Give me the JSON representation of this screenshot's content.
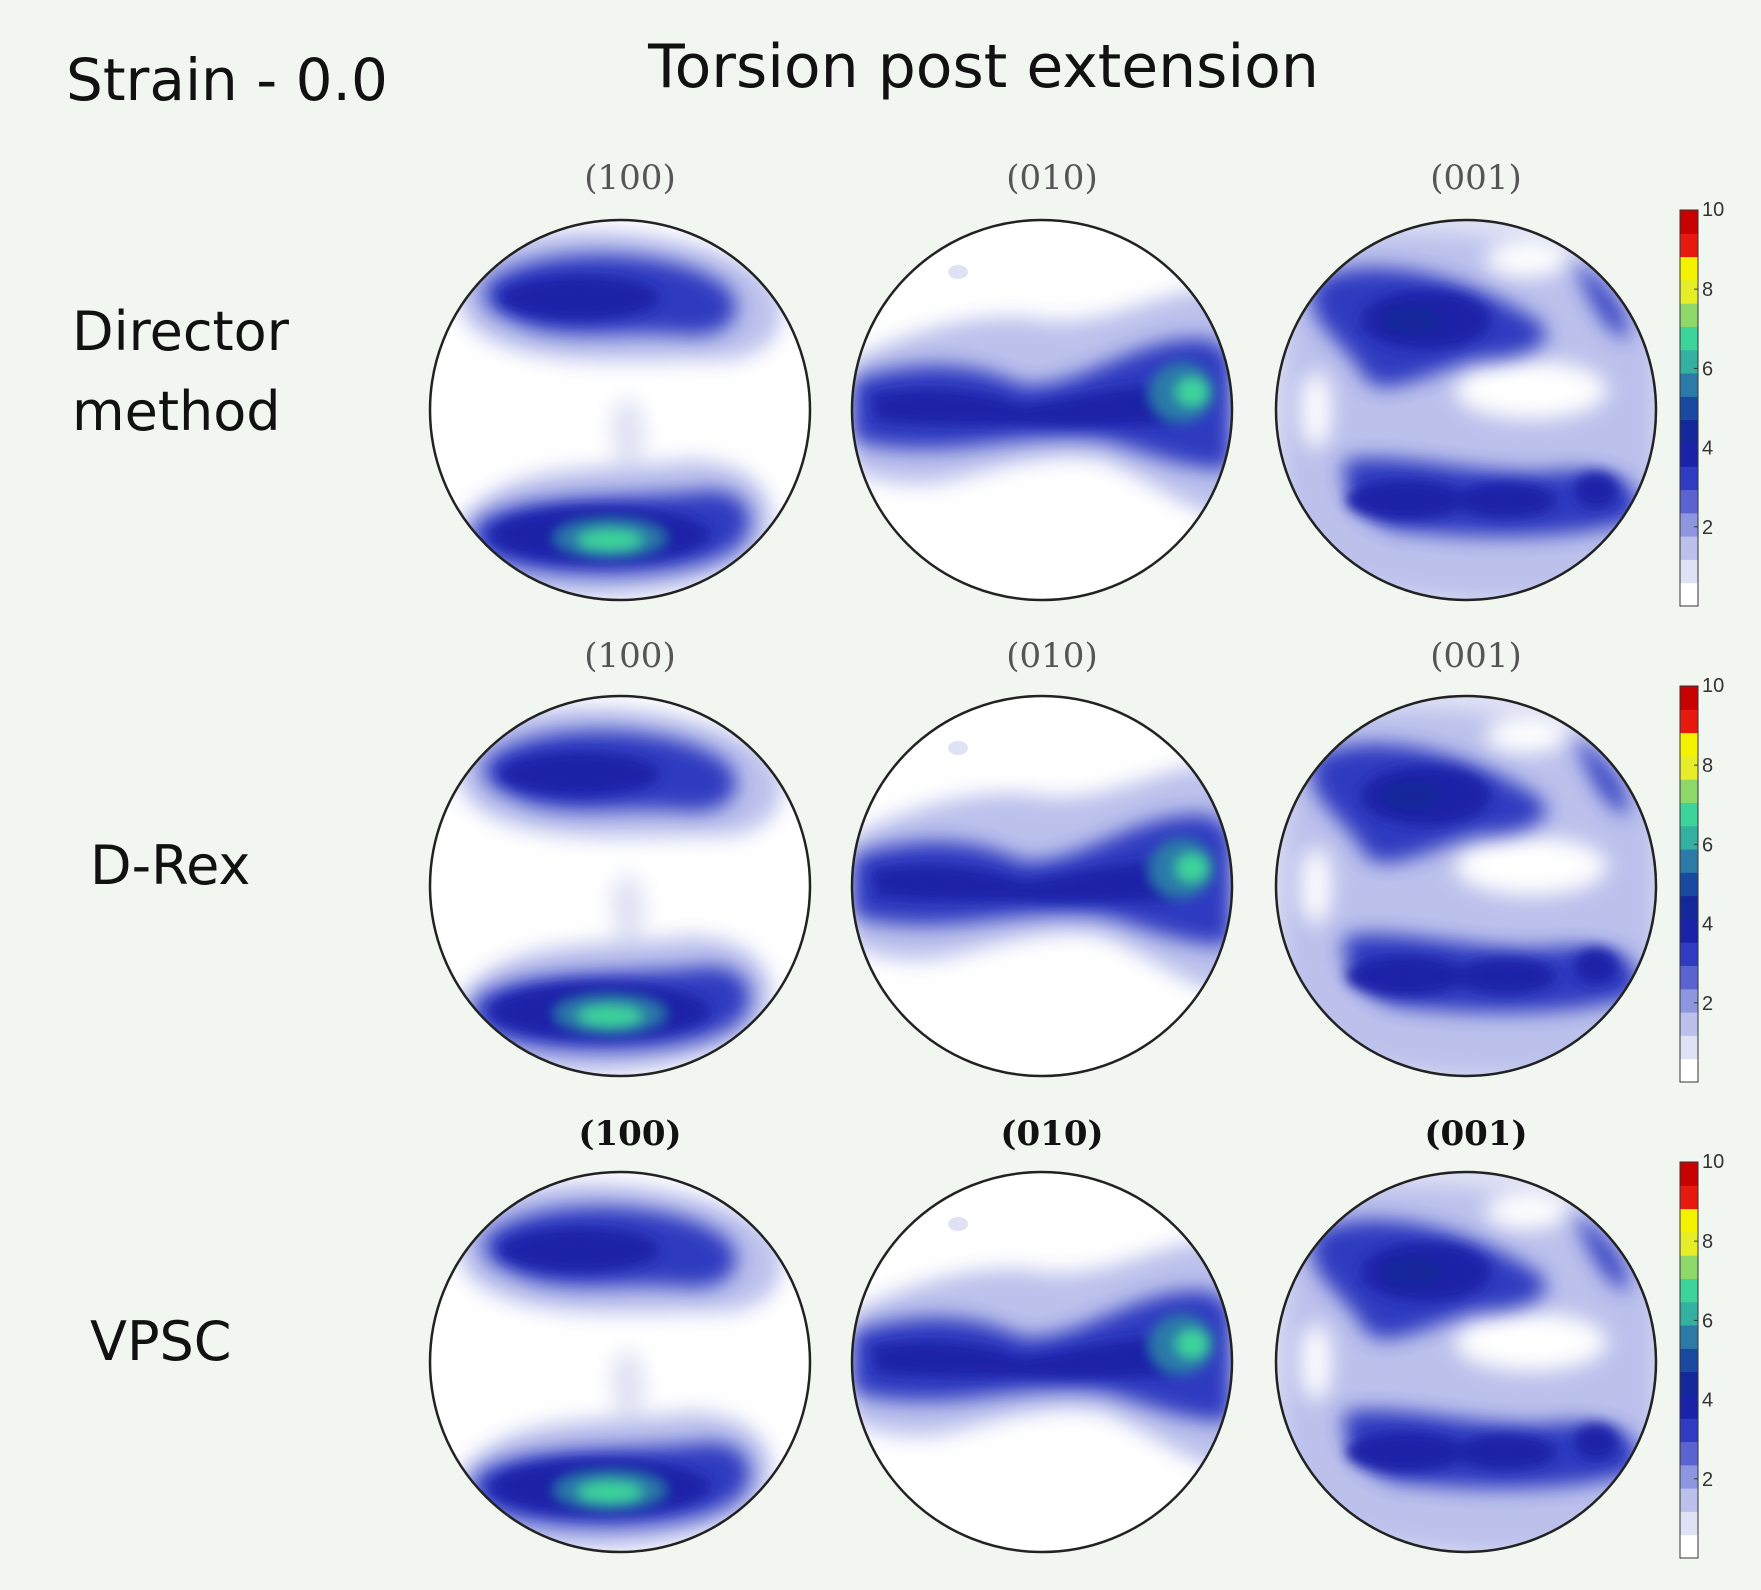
{
  "header": {
    "strain_label": "Strain - 0.0",
    "title": "Torsion post extension"
  },
  "rows": [
    {
      "label_lines": [
        "Director",
        "method"
      ],
      "pole_titles": [
        "(100)",
        "(010)",
        "(001)"
      ]
    },
    {
      "label_lines": [
        "D-Rex"
      ],
      "pole_titles": [
        "(100)",
        "(010)",
        "(001)"
      ]
    },
    {
      "label_lines": [
        "VPSC"
      ],
      "pole_titles": [
        "(100)",
        "(010)",
        "(001)"
      ]
    }
  ],
  "colorbar": {
    "ticks": [
      "2",
      "4",
      "6",
      "8",
      "10"
    ],
    "min": 0,
    "max": 10,
    "colors": [
      "#ffffff",
      "#dfe2f4",
      "#bcc1ec",
      "#8f96e0",
      "#5a63d0",
      "#2f3bc0",
      "#1a22a8",
      "#14289a",
      "#1a4aa0",
      "#2c7aa8",
      "#33b0a0",
      "#3cd49a",
      "#8ed86a",
      "#e6ee2a",
      "#f5f200",
      "#e81a10",
      "#c80000"
    ]
  },
  "colors": {
    "background": "#f1f7f0",
    "low": "#dfe2f4",
    "mid": "#2f3bc0",
    "high": "#1a22a8",
    "peak": "#3cd49a"
  }
}
